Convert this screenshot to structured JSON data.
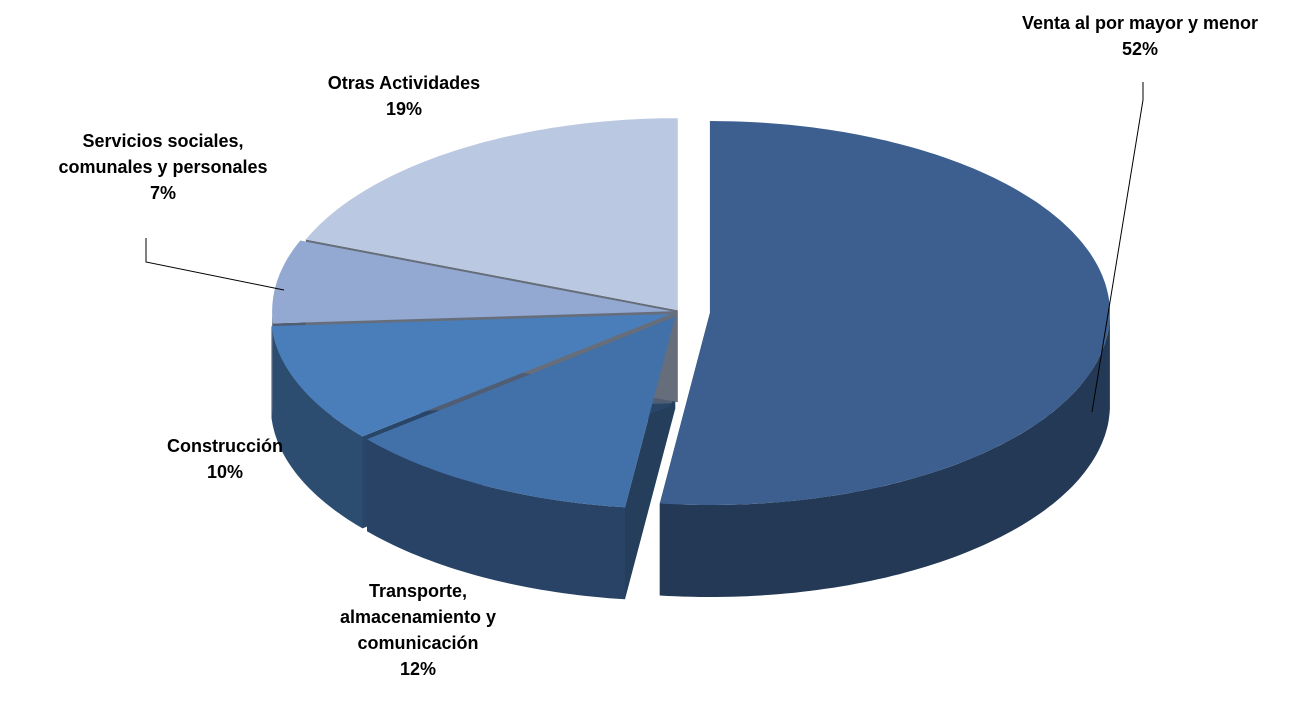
{
  "chart_data": {
    "type": "pie",
    "categories": [
      "Venta al por mayor y menor",
      "Transporte, almacenamiento y comunicación",
      "Construcción",
      "Servicios sociales, comunales y personales",
      "Otras Actividades"
    ],
    "values": [
      52,
      12,
      10,
      7,
      19
    ],
    "value_labels": [
      "52%",
      "12%",
      "10%",
      "7%",
      "19%"
    ],
    "colors": [
      "#3c5f8f",
      "#4270a8",
      "#4a7ebb",
      "#94a9d1",
      "#bac8e1"
    ]
  }
}
